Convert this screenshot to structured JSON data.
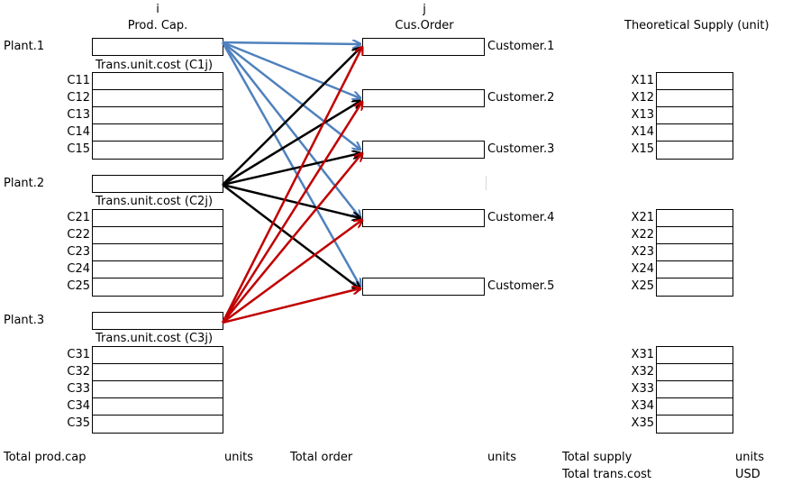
{
  "header": {
    "i_label": "i",
    "prod_cap": "Prod. Cap.",
    "j_label": "j",
    "cus_order": "Cus.Order",
    "theoretical_supply": "Theoretical Supply (unit)"
  },
  "plants": [
    {
      "label": "Plant.1",
      "trans_label": "Trans.unit.cost (C1j)",
      "costs": [
        "C11",
        "C12",
        "C13",
        "C14",
        "C15"
      ],
      "supplies": [
        "X11",
        "X12",
        "X13",
        "X14",
        "X15"
      ]
    },
    {
      "label": "Plant.2",
      "trans_label": "Trans.unit.cost (C2j)",
      "costs": [
        "C21",
        "C22",
        "C23",
        "C24",
        "C25"
      ],
      "supplies": [
        "X21",
        "X22",
        "X23",
        "X24",
        "X25"
      ]
    },
    {
      "label": "Plant.3",
      "trans_label": "Trans.unit.cost (C3j)",
      "costs": [
        "C31",
        "C32",
        "C33",
        "C34",
        "C35"
      ],
      "supplies": [
        "X31",
        "X32",
        "X33",
        "X34",
        "X35"
      ]
    }
  ],
  "customers": [
    "Customer.1",
    "Customer.2",
    "Customer.3",
    "Customer.4",
    "Customer.5"
  ],
  "footer": {
    "total_prod_cap": "Total prod.cap",
    "units_1": "units",
    "total_order": "Total order",
    "units_2": "units",
    "total_supply": "Total supply",
    "units_3": "units",
    "total_trans_cost": "Total trans.cost",
    "usd": "USD"
  },
  "colors": {
    "plant1_arrows": "#4f81bd",
    "plant2_arrows": "#000000",
    "plant3_arrows": "#c00000"
  }
}
